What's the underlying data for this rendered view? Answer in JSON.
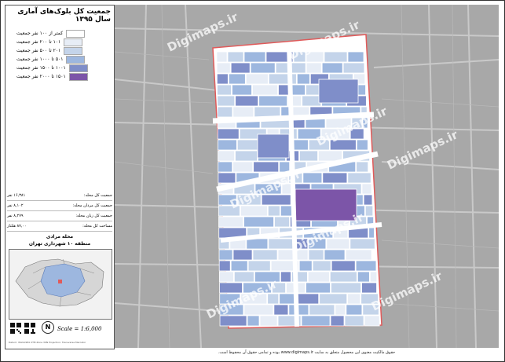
{
  "panel": {
    "title": "جمعیت کل بلوک‌های آماری سال ۱۳۹۵",
    "legend": [
      {
        "label": "کمتر از ۱۰۰ نفر جمعیت",
        "color": "#ffffff"
      },
      {
        "label": "۱۰۱ تا ۲۰۰ نفر جمعیت",
        "color": "#e7edf6"
      },
      {
        "label": "۲۰۱ تا ۵۰۰ نفر جمعیت",
        "color": "#c4d4ea"
      },
      {
        "label": "۵۰۱ تا ۱۰۰۰ نفر جمعیت",
        "color": "#9db7df"
      },
      {
        "label": "۱۰۰۱ تا ۱۵۰۰ نفر جمعیت",
        "color": "#7f8ec9"
      },
      {
        "label": "۱۵۰۱ تا ۲۰۰۰ نفر جمعیت",
        "color": "#7c55a8"
      }
    ],
    "stats": [
      {
        "label": "جمعیت کل محله:",
        "value": "۱۶,۳۸۱ نفر"
      },
      {
        "label": "جمعیت کل مردان محله:",
        "value": "۸,۱۰۲ نفر"
      },
      {
        "label": "جمعیت کل زنان محله:",
        "value": "۸,۲۷۹ نفر"
      },
      {
        "label": "مساحت کل محله:",
        "value": "۸۷,۰۰ هکتار"
      }
    ],
    "district_name": "محله مرادی",
    "district_sub": "منطقه ۱۰ شهرداری تهران",
    "scale": "Scale = 1:6,000",
    "north": "N",
    "credit": "Datum: WGS1984 UTM Zone 39N  Projection: Transverse Mercator"
  },
  "map": {
    "watermark": "Digimaps.ir",
    "colors": {
      "background": "#a8a8a8",
      "boundary": "#e05a5a",
      "road": "#ffffff"
    }
  },
  "footer": "حقوق مالکیت معنوی این محصول متعلق به سایت www.digimaps.ir بوده و تمامی حقوق آن محفوظ است."
}
